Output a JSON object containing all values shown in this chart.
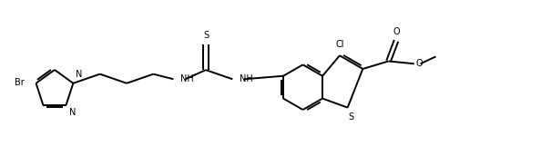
{
  "background_color": "#ffffff",
  "line_color": "#000000",
  "line_width": 1.4,
  "figsize": [
    5.94,
    1.72
  ],
  "dpi": 100,
  "font_size": 7.0,
  "xlim": [
    0,
    10.5
  ],
  "ylim": [
    0,
    3.0
  ]
}
